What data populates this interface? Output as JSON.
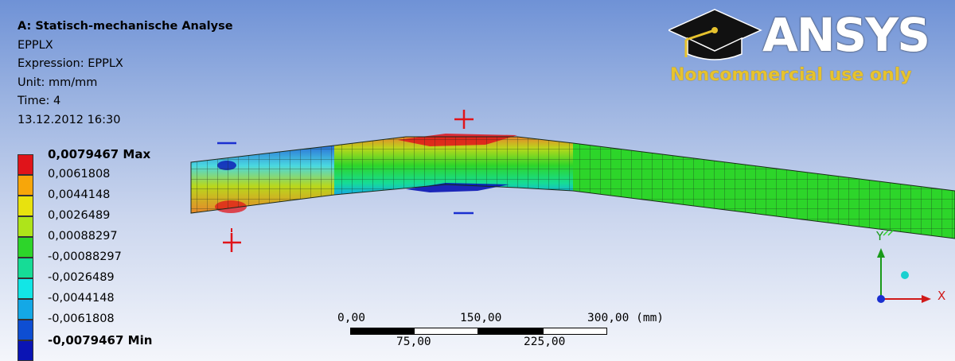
{
  "header": {
    "title": "A: Statisch-mechanische Analyse",
    "result": "EPPLX",
    "expression": "Expression: EPPLX",
    "unit": "Unit: mm/mm",
    "time": "Time: 4",
    "date": "13.12.2012 16:30"
  },
  "legend": [
    {
      "label": "0,0079467 Max",
      "color": "#e0141a",
      "bold": true
    },
    {
      "label": "0,0061808",
      "color": "#f7a60a"
    },
    {
      "label": "0,0044148",
      "color": "#e8e20e"
    },
    {
      "label": "0,0026489",
      "color": "#aee41a"
    },
    {
      "label": "0,00088297",
      "color": "#2dd52a"
    },
    {
      "label": "-0,00088297",
      "color": "#16dc96"
    },
    {
      "label": "-0,0026489",
      "color": "#12e6e6"
    },
    {
      "label": "-0,0044148",
      "color": "#14a8e6"
    },
    {
      "label": "-0,0061808",
      "color": "#0e4ed2"
    },
    {
      "label": "-0,0079467 Min",
      "color": "#0a14b4",
      "bold": true
    }
  ],
  "logo": {
    "brand": "ANSYS",
    "note": "Noncommercial use only"
  },
  "scale": {
    "top_labels": [
      "0,00",
      "150,00",
      "300,00 (mm)"
    ],
    "bottom_labels": [
      "75,00",
      "225,00"
    ]
  },
  "triad": {
    "y_axis": "Y",
    "x_axis": "X"
  }
}
